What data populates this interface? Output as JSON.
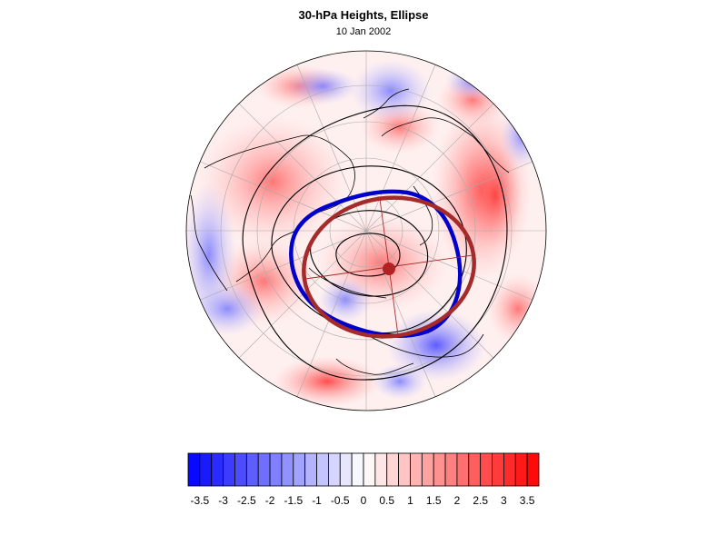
{
  "title": "30-hPa Heights, Ellipse",
  "subtitle": "10 Jan 2002",
  "colorbar": {
    "boundaries": [
      -3.75,
      -3.5,
      -3.25,
      -3,
      -2.75,
      -2.5,
      -2.25,
      -2,
      -1.75,
      -1.5,
      -1.25,
      -1,
      -0.75,
      -0.5,
      -0.25,
      0,
      0.25,
      0.5,
      0.75,
      1,
      1.25,
      1.5,
      1.75,
      2,
      2.25,
      2.5,
      2.75,
      3,
      3.25,
      3.5,
      3.75
    ],
    "tick_labels": [
      "-3.5",
      "-3",
      "-2.5",
      "-2",
      "-1.5",
      "-1",
      "-0.5",
      "0",
      "0.5",
      "1",
      "1.5",
      "2",
      "2.5",
      "3",
      "3.5"
    ],
    "tick_values": [
      -3.5,
      -3,
      -2.5,
      -2,
      -1.5,
      -1,
      -0.5,
      0,
      0.5,
      1,
      1.5,
      2,
      2.5,
      3,
      3.5
    ],
    "low_color": "#0000ff",
    "mid_color": "#ffffff",
    "high_color": "#ff0000"
  },
  "overlays": {
    "vortex_edge_color": "#0000cc",
    "ellipse_color": "#a52a2a",
    "ellipse_center_color": "#b22222",
    "height_contour_color": "#000000",
    "coastline_color": "#000000",
    "grid_color": "#aaaaaa"
  }
}
